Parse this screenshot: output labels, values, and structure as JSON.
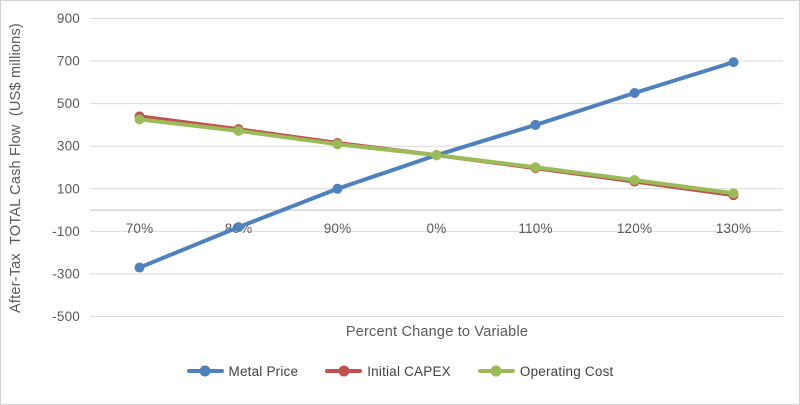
{
  "window": {
    "background": "#ffffff",
    "border_color": "#d2d2d2"
  },
  "chart_data": {
    "type": "line",
    "title": "",
    "xlabel": "Percent Change to Variable",
    "ylabel": "After-Tax  TOTAL Cash Flow  (US$ millions)",
    "categories": [
      "70%",
      "80%",
      "90%",
      "0%",
      "110%",
      "120%",
      "130%"
    ],
    "y_ticks": [
      900,
      700,
      500,
      300,
      100,
      -100,
      -300,
      -500
    ],
    "ylim": [
      -500,
      900
    ],
    "grid": "horizontal",
    "legend_position": "bottom",
    "series": [
      {
        "name": "Metal Price",
        "color": "#4F81BD",
        "values": [
          -270,
          -80,
          100,
          258,
          400,
          550,
          695
        ]
      },
      {
        "name": "Initial CAPEX",
        "color": "#C0504D",
        "values": [
          440,
          380,
          315,
          258,
          197,
          134,
          70
        ]
      },
      {
        "name": "Operating Cost",
        "color": "#9BBB59",
        "values": [
          426,
          372,
          309,
          258,
          201,
          141,
          79
        ]
      }
    ],
    "colors": {
      "gridline": "#D9D9D9",
      "axis_line": "#BFBFBF",
      "tick_label": "#595959",
      "axis_title": "#595959",
      "legend_label": "#3F3F3F"
    }
  }
}
